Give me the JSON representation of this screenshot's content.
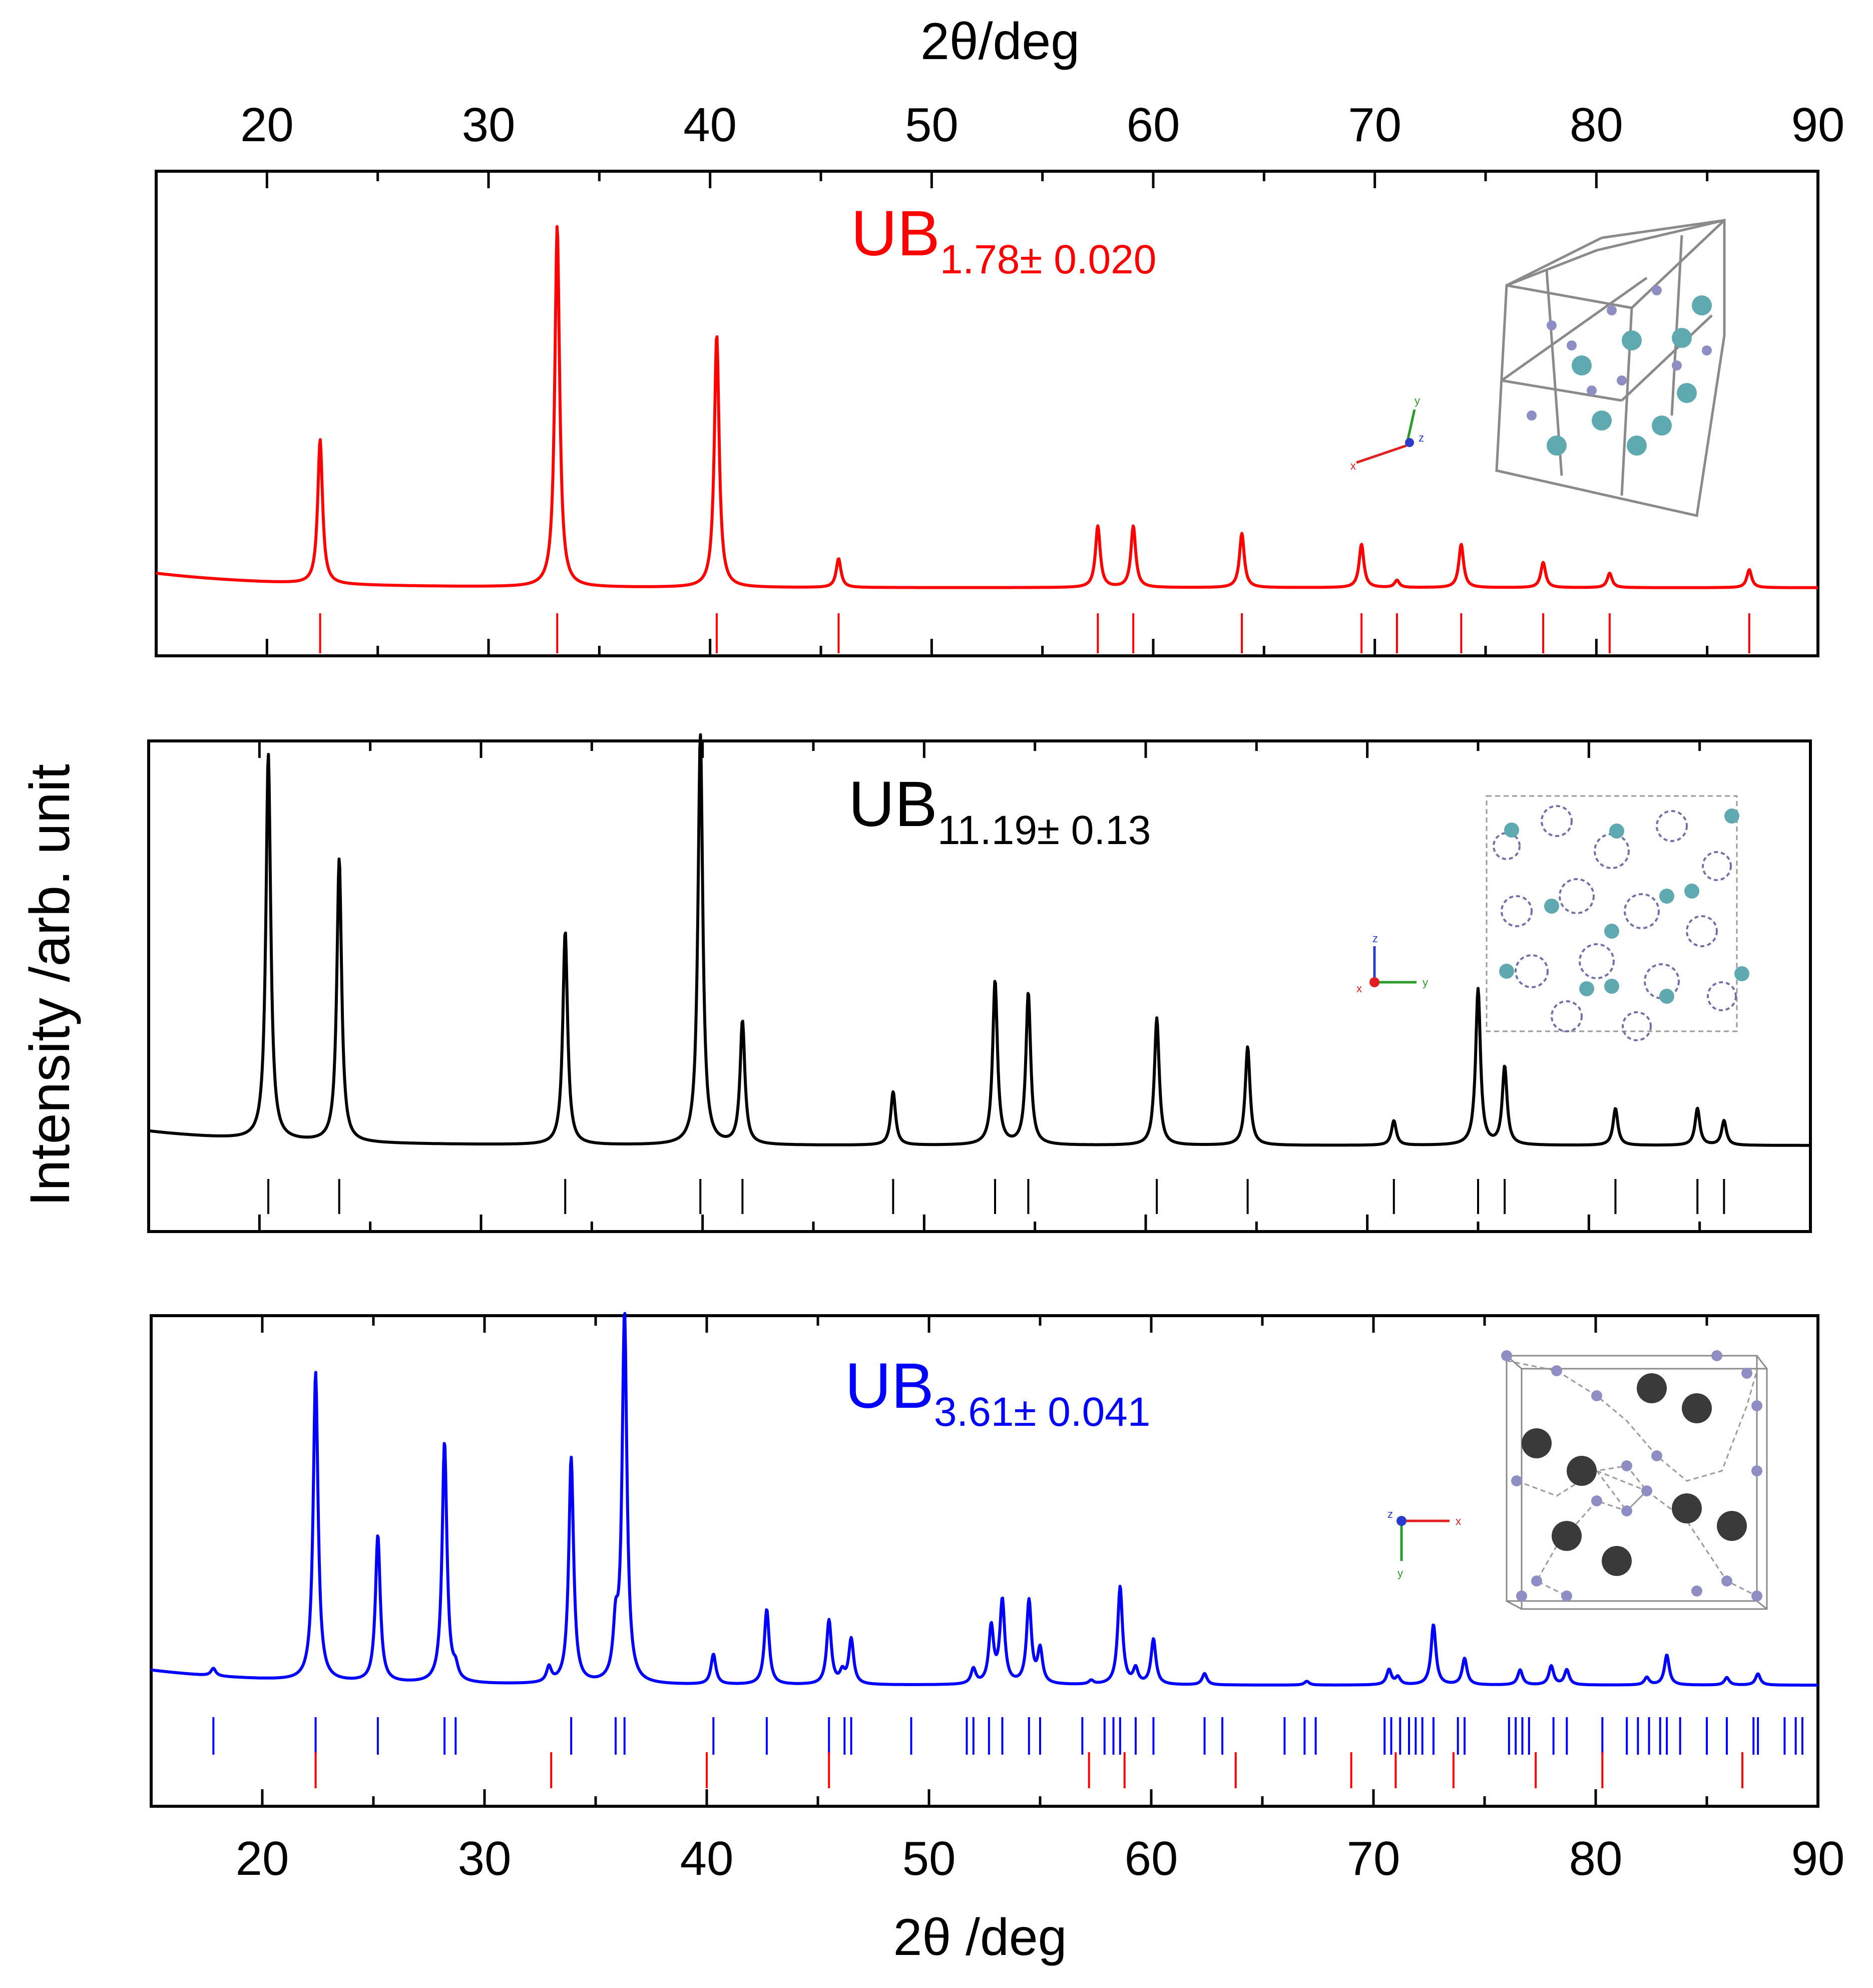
{
  "figure": {
    "top_axis_title": "2θ/deg",
    "bottom_axis_title": "2θ /deg",
    "y_axis_title": "Intensity /arb. unit"
  },
  "chart_data": {
    "type": "line",
    "x_range": [
      15,
      90
    ],
    "x_ticks": [
      20,
      30,
      40,
      50,
      60,
      70,
      80,
      90
    ],
    "x_tick_labels": [
      "20",
      "30",
      "40",
      "50",
      "60",
      "70",
      "80",
      "90"
    ],
    "xlabel_top": "2θ/deg",
    "xlabel_bottom": "2θ /deg",
    "ylabel": "Intensity /arb. unit",
    "panels": [
      {
        "name": "UB2",
        "label": "UB",
        "label_sub": "1.78± 0.020",
        "color": "#ff0000",
        "ylim": [
          0,
          1.15
        ],
        "baseline": 0.05,
        "background_start": 0.09,
        "peaks": [
          {
            "x": 22.4,
            "h": 0.4
          },
          {
            "x": 33.1,
            "h": 1.0
          },
          {
            "x": 40.3,
            "h": 0.7
          },
          {
            "x": 45.8,
            "h": 0.08
          },
          {
            "x": 57.5,
            "h": 0.17
          },
          {
            "x": 59.1,
            "h": 0.17
          },
          {
            "x": 64.0,
            "h": 0.15
          },
          {
            "x": 69.4,
            "h": 0.12
          },
          {
            "x": 71.0,
            "h": 0.02
          },
          {
            "x": 73.9,
            "h": 0.12
          },
          {
            "x": 77.6,
            "h": 0.07
          },
          {
            "x": 80.6,
            "h": 0.04
          },
          {
            "x": 86.9,
            "h": 0.05
          }
        ],
        "reference_lines": [
          {
            "color": "#ff0000",
            "positions": [
              22.4,
              33.1,
              40.3,
              45.8,
              57.5,
              59.1,
              64.0,
              69.4,
              71.0,
              73.9,
              77.6,
              80.6,
              86.9
            ]
          }
        ],
        "crystal_icon": "hexagonal-cell-icon",
        "axes_icon": "coordinate-axes-icon"
      },
      {
        "name": "UB12",
        "label": "UB",
        "label_sub": "11.19± 0.13",
        "color": "#000000",
        "ylim": [
          0,
          1.02
        ],
        "baseline": 0.045,
        "background_start": 0.08,
        "peaks": [
          {
            "x": 20.4,
            "h": 0.94
          },
          {
            "x": 23.6,
            "h": 0.69
          },
          {
            "x": 33.8,
            "h": 0.52
          },
          {
            "x": 39.9,
            "h": 1.0
          },
          {
            "x": 41.8,
            "h": 0.3
          },
          {
            "x": 48.6,
            "h": 0.13
          },
          {
            "x": 53.2,
            "h": 0.4
          },
          {
            "x": 54.7,
            "h": 0.37
          },
          {
            "x": 60.5,
            "h": 0.31
          },
          {
            "x": 64.6,
            "h": 0.24
          },
          {
            "x": 71.2,
            "h": 0.06
          },
          {
            "x": 75.0,
            "h": 0.38
          },
          {
            "x": 76.2,
            "h": 0.19
          },
          {
            "x": 81.2,
            "h": 0.09
          },
          {
            "x": 84.9,
            "h": 0.09
          },
          {
            "x": 86.1,
            "h": 0.06
          }
        ],
        "reference_lines": [
          {
            "color": "#000000",
            "positions": [
              20.4,
              23.6,
              33.8,
              39.9,
              41.8,
              48.6,
              53.2,
              54.7,
              60.5,
              64.6,
              71.2,
              75.0,
              76.2,
              81.2,
              84.9,
              86.1
            ]
          }
        ],
        "crystal_icon": "cubic-cage-cell-icon",
        "axes_icon": "coordinate-axes-icon"
      },
      {
        "name": "UB4",
        "label": "UB",
        "label_sub": "3.61± 0.041",
        "color": "#0000ff",
        "ylim": [
          0,
          1.0
        ],
        "baseline": 0.025,
        "background_start": 0.065,
        "peaks": [
          {
            "x": 17.8,
            "h": 0.02
          },
          {
            "x": 22.4,
            "h": 0.82
          },
          {
            "x": 25.2,
            "h": 0.39
          },
          {
            "x": 28.2,
            "h": 0.64
          },
          {
            "x": 28.7,
            "h": 0.03
          },
          {
            "x": 32.9,
            "h": 0.04
          },
          {
            "x": 33.9,
            "h": 0.6
          },
          {
            "x": 35.9,
            "h": 0.13
          },
          {
            "x": 36.3,
            "h": 0.98
          },
          {
            "x": 40.3,
            "h": 0.08
          },
          {
            "x": 42.7,
            "h": 0.2
          },
          {
            "x": 45.5,
            "h": 0.17
          },
          {
            "x": 46.1,
            "h": 0.03
          },
          {
            "x": 46.5,
            "h": 0.12
          },
          {
            "x": 52.0,
            "h": 0.04
          },
          {
            "x": 52.8,
            "h": 0.15
          },
          {
            "x": 53.3,
            "h": 0.22
          },
          {
            "x": 54.5,
            "h": 0.22
          },
          {
            "x": 55.0,
            "h": 0.09
          },
          {
            "x": 57.3,
            "h": 0.01
          },
          {
            "x": 58.6,
            "h": 0.26
          },
          {
            "x": 59.3,
            "h": 0.04
          },
          {
            "x": 60.1,
            "h": 0.12
          },
          {
            "x": 62.4,
            "h": 0.03
          },
          {
            "x": 67.0,
            "h": 0.01
          },
          {
            "x": 70.7,
            "h": 0.04
          },
          {
            "x": 71.1,
            "h": 0.02
          },
          {
            "x": 72.7,
            "h": 0.16
          },
          {
            "x": 74.1,
            "h": 0.07
          },
          {
            "x": 76.6,
            "h": 0.04
          },
          {
            "x": 78.0,
            "h": 0.05
          },
          {
            "x": 78.7,
            "h": 0.04
          },
          {
            "x": 82.3,
            "h": 0.02
          },
          {
            "x": 83.2,
            "h": 0.08
          },
          {
            "x": 85.9,
            "h": 0.02
          },
          {
            "x": 87.3,
            "h": 0.03
          }
        ],
        "reference_lines": [
          {
            "color": "#0000ff",
            "positions": [
              17.8,
              22.4,
              25.2,
              28.2,
              28.7,
              33.9,
              35.9,
              36.3,
              40.3,
              42.7,
              45.5,
              46.2,
              46.5,
              49.2,
              51.7,
              52.0,
              52.7,
              53.3,
              54.5,
              55.0,
              56.9,
              57.9,
              58.3,
              58.6,
              59.3,
              60.1,
              62.4,
              63.2,
              66.0,
              66.9,
              67.4,
              70.5,
              70.8,
              71.2,
              71.6,
              71.9,
              72.2,
              72.7,
              73.8,
              74.1,
              76.1,
              76.4,
              76.7,
              77.0,
              78.1,
              78.7,
              80.3,
              81.4,
              81.9,
              82.4,
              82.9,
              83.2,
              83.8,
              85.0,
              85.9,
              87.1,
              87.3,
              88.5,
              89.0,
              89.3
            ]
          },
          {
            "color": "#ff0000",
            "positions": [
              22.4,
              33.0,
              40.0,
              45.5,
              57.2,
              58.8,
              63.8,
              69.0,
              71.0,
              73.6,
              77.3,
              80.3,
              86.6
            ]
          }
        ],
        "crystal_icon": "tetragonal-cell-icon",
        "axes_icon": "coordinate-axes-icon"
      }
    ]
  }
}
